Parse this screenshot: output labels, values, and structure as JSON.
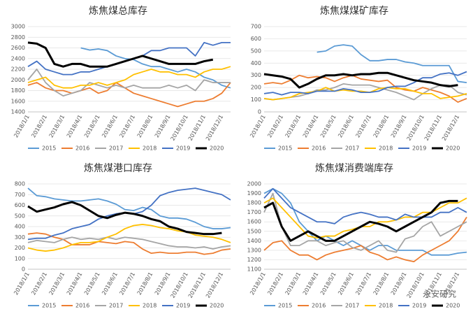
{
  "chart_data": [
    {
      "type": "line",
      "title": "炼焦煤总库存",
      "categories": [
        "2018/1/1",
        null,
        "2018/2/1",
        null,
        "2018/3/1",
        null,
        "2018/4/1",
        null,
        "2018/5/1",
        null,
        "2018/6/1",
        null,
        "2018/7/1",
        null,
        "2018/8/1",
        null,
        "2018/9/1",
        null,
        "2018/10/1",
        null,
        "2018/11/1",
        null,
        "2018/12/1",
        null
      ],
      "ylim": [
        1400,
        3000
      ],
      "yticks": [
        1400,
        1600,
        1800,
        2000,
        2200,
        2400,
        2600,
        2800,
        3000
      ],
      "series": [
        {
          "name": "2015",
          "color": "#5b9bd5",
          "values": [
            null,
            null,
            null,
            null,
            null,
            null,
            2600,
            2560,
            2580,
            2550,
            2450,
            2400,
            2380,
            2300,
            2250,
            2250,
            2200,
            2150,
            2200,
            2150,
            2050,
            2000,
            1900,
            1850
          ]
        },
        {
          "name": "2016",
          "color": "#ed7d31",
          "values": [
            1900,
            1950,
            1850,
            1800,
            1800,
            1750,
            1800,
            1850,
            1750,
            1800,
            1950,
            1850,
            1750,
            1700,
            1650,
            1600,
            1550,
            1500,
            1550,
            1600,
            1600,
            1650,
            1750,
            1950
          ]
        },
        {
          "name": "2017",
          "color": "#a5a5a5",
          "values": [
            2000,
            2200,
            1950,
            1800,
            1700,
            1750,
            1800,
            1950,
            1900,
            1850,
            1900,
            1850,
            1900,
            1850,
            1850,
            1850,
            1900,
            1850,
            1900,
            1800,
            2000,
            1950,
            1950,
            1950
          ]
        },
        {
          "name": "2018",
          "color": "#ffc000",
          "values": [
            1950,
            2000,
            2050,
            1900,
            1850,
            1850,
            1900,
            1900,
            1950,
            1900,
            1950,
            2000,
            2100,
            2150,
            2200,
            2150,
            2150,
            2100,
            2100,
            2050,
            2150,
            2200,
            2200,
            2250
          ]
        },
        {
          "name": "2019",
          "color": "#4472c4",
          "values": [
            2250,
            2350,
            2200,
            2150,
            2100,
            2100,
            2150,
            2150,
            2200,
            2250,
            2300,
            2350,
            2400,
            2450,
            2550,
            2550,
            2600,
            2600,
            2600,
            2450,
            2700,
            2650,
            2700,
            2700
          ]
        },
        {
          "name": "2020",
          "color": "#000000",
          "values": [
            2700,
            2680,
            2600,
            2300,
            2250,
            2300,
            2300,
            2250,
            2250,
            2250,
            2300,
            2350,
            2400,
            2450,
            2400,
            2350,
            2300,
            2300,
            2300,
            2300,
            2350,
            2380,
            null,
            null
          ]
        }
      ]
    },
    {
      "type": "line",
      "title": "炼焦煤煤矿库存",
      "categories": [
        "2018/1/1",
        null,
        "2018/2/1",
        null,
        "2018/3/1",
        null,
        "2018/4/1",
        null,
        "2018/5/1",
        null,
        "2018/6/1",
        null,
        "2018/7/1",
        null,
        "2018/8/1",
        null,
        "2018/9/1",
        null,
        "2018/10/1",
        null,
        "2018/11/1",
        null,
        "2018/12/1",
        null
      ],
      "ylim": [
        0,
        700
      ],
      "yticks": [
        0,
        100,
        200,
        300,
        400,
        500,
        600,
        700
      ],
      "series": [
        {
          "name": "2015",
          "color": "#5b9bd5",
          "values": [
            null,
            null,
            null,
            null,
            null,
            null,
            490,
            500,
            540,
            550,
            540,
            470,
            420,
            420,
            430,
            430,
            410,
            400,
            380,
            380,
            380,
            380,
            250,
            240
          ]
        },
        {
          "name": "2016",
          "color": "#ed7d31",
          "values": [
            230,
            240,
            230,
            260,
            300,
            280,
            290,
            280,
            250,
            280,
            300,
            270,
            260,
            250,
            260,
            200,
            180,
            170,
            200,
            180,
            160,
            130,
            80,
            110
          ]
        },
        {
          "name": "2017",
          "color": "#a5a5a5",
          "values": [
            110,
            100,
            110,
            120,
            130,
            150,
            180,
            180,
            200,
            230,
            220,
            220,
            220,
            200,
            180,
            160,
            130,
            100,
            150,
            190,
            220,
            220,
            160,
            140
          ]
        },
        {
          "name": "2018",
          "color": "#ffc000",
          "values": [
            110,
            100,
            110,
            120,
            150,
            160,
            170,
            200,
            170,
            180,
            170,
            170,
            160,
            190,
            200,
            190,
            190,
            170,
            150,
            150,
            110,
            120,
            130,
            150
          ]
        },
        {
          "name": "2019",
          "color": "#4472c4",
          "values": [
            150,
            160,
            140,
            160,
            160,
            150,
            170,
            170,
            170,
            190,
            180,
            160,
            160,
            170,
            200,
            210,
            210,
            240,
            280,
            280,
            310,
            320,
            300,
            330
          ]
        },
        {
          "name": "2020",
          "color": "#000000",
          "values": [
            310,
            300,
            290,
            270,
            200,
            230,
            270,
            300,
            300,
            310,
            300,
            310,
            310,
            320,
            320,
            300,
            280,
            260,
            250,
            240,
            220,
            210,
            220,
            null
          ]
        }
      ]
    },
    {
      "type": "line",
      "title": "炼焦煤港口库存",
      "categories": [
        "2018/1/1",
        null,
        "2018/2/1",
        null,
        "2018/3/1",
        null,
        "2018/4/1",
        null,
        "2018/5/1",
        null,
        "2018/6/1",
        null,
        "2018/7/1",
        null,
        "2018/8/1",
        null,
        "2018/9/1",
        null,
        "2018/10/1",
        null,
        "2018/11/1",
        null,
        "2018/12/1",
        null
      ],
      "ylim": [
        0,
        800
      ],
      "yticks": [
        0,
        100,
        200,
        300,
        400,
        500,
        600,
        700,
        800
      ],
      "series": [
        {
          "name": "2015",
          "color": "#5b9bd5",
          "values": [
            760,
            690,
            680,
            660,
            650,
            640,
            640,
            650,
            660,
            640,
            610,
            560,
            550,
            580,
            560,
            500,
            480,
            480,
            470,
            440,
            400,
            380,
            380,
            390
          ]
        },
        {
          "name": "2016",
          "color": "#ed7d31",
          "values": [
            330,
            340,
            330,
            300,
            280,
            230,
            230,
            230,
            260,
            250,
            240,
            260,
            250,
            190,
            150,
            160,
            150,
            150,
            160,
            160,
            140,
            150,
            180,
            190
          ]
        },
        {
          "name": "2017",
          "color": "#a5a5a5",
          "values": [
            250,
            270,
            260,
            250,
            280,
            300,
            280,
            290,
            280,
            300,
            280,
            300,
            290,
            280,
            260,
            240,
            220,
            210,
            210,
            200,
            210,
            190,
            210,
            220
          ]
        },
        {
          "name": "2018",
          "color": "#ffc000",
          "values": [
            200,
            180,
            170,
            180,
            200,
            230,
            250,
            250,
            260,
            300,
            330,
            380,
            410,
            420,
            410,
            390,
            380,
            360,
            350,
            320,
            310,
            300,
            280,
            250
          ]
        },
        {
          "name": "2019",
          "color": "#4472c4",
          "values": [
            280,
            290,
            290,
            320,
            340,
            380,
            400,
            420,
            470,
            500,
            520,
            530,
            520,
            540,
            600,
            690,
            720,
            740,
            750,
            760,
            740,
            720,
            700,
            650
          ]
        },
        {
          "name": "2020",
          "color": "#000000",
          "values": [
            590,
            540,
            560,
            580,
            610,
            630,
            600,
            550,
            500,
            480,
            510,
            530,
            520,
            500,
            470,
            450,
            400,
            380,
            350,
            340,
            330,
            330,
            340,
            null
          ]
        }
      ]
    },
    {
      "type": "line",
      "title": "炼焦煤消费端库存",
      "watermark": "永安研究",
      "categories": [
        "2018/1/1",
        null,
        "2018/2/1",
        null,
        "2018/3/1",
        null,
        "2018/4/1",
        null,
        "2018/5/1",
        null,
        "2018/6/1",
        null,
        "2018/7/1",
        null,
        "2018/8/1",
        null,
        "2018/9/1",
        null,
        "2018/10/1",
        null,
        "2018/11/1",
        null,
        "2018/12/1",
        null
      ],
      "ylim": [
        1100,
        2000
      ],
      "yticks": [
        1100,
        1200,
        1300,
        1400,
        1500,
        1600,
        1700,
        1800,
        1900,
        2000
      ],
      "series": [
        {
          "name": "2015",
          "color": "#5b9bd5",
          "values": [
            1900,
            1950,
            1900,
            1800,
            1600,
            1500,
            1400,
            1450,
            1400,
            1350,
            1400,
            1350,
            1300,
            1350,
            1350,
            1300,
            1300,
            1300,
            1300,
            1250,
            1250,
            1250,
            1270,
            1280
          ]
        },
        {
          "name": "2016",
          "color": "#ed7d31",
          "values": [
            1300,
            1380,
            1400,
            1300,
            1250,
            1250,
            1200,
            1250,
            1280,
            1300,
            1320,
            1350,
            1280,
            1250,
            1200,
            1230,
            1200,
            1180,
            1250,
            1300,
            1350,
            1400,
            1500,
            1650
          ]
        },
        {
          "name": "2017",
          "color": "#a5a5a5",
          "values": [
            1700,
            1900,
            1550,
            1350,
            1350,
            1400,
            1400,
            1350,
            1380,
            1400,
            1330,
            1300,
            1350,
            1400,
            1300,
            1280,
            1420,
            1450,
            1550,
            1600,
            1450,
            1500,
            1550,
            1600
          ]
        },
        {
          "name": "2018",
          "color": "#ffc000",
          "values": [
            1800,
            1850,
            1750,
            1650,
            1550,
            1450,
            1430,
            1450,
            1450,
            1500,
            1520,
            1550,
            1550,
            1600,
            1600,
            1620,
            1650,
            1650,
            1700,
            1700,
            1750,
            1800,
            1800,
            1850
          ]
        },
        {
          "name": "2019",
          "color": "#4472c4",
          "values": [
            1850,
            1950,
            1850,
            1750,
            1700,
            1650,
            1600,
            1600,
            1580,
            1650,
            1680,
            1700,
            1680,
            1650,
            1650,
            1620,
            1680,
            1650,
            1650,
            1650,
            1700,
            1700,
            1750,
            1700
          ]
        },
        {
          "name": "2020",
          "color": "#000000",
          "values": [
            1750,
            1800,
            1550,
            1400,
            1450,
            1500,
            1450,
            1400,
            1400,
            1450,
            1500,
            1550,
            1600,
            1580,
            1550,
            1500,
            1550,
            1600,
            1650,
            1700,
            1800,
            1820,
            1820,
            null
          ]
        }
      ]
    }
  ]
}
